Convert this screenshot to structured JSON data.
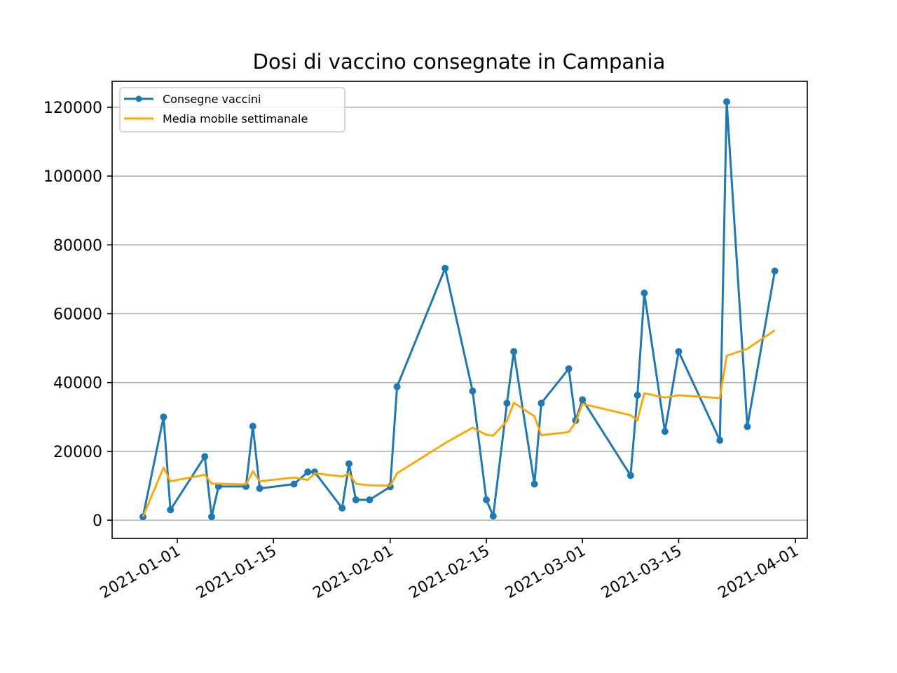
{
  "chart_data": {
    "type": "line",
    "title": "Dosi di vaccino consegnate in Campania",
    "xlabel": "",
    "ylabel": "",
    "x_ticks": [
      "2021-01-01",
      "2021-01-15",
      "2021-02-01",
      "2021-02-15",
      "2021-03-01",
      "2021-03-15",
      "2021-04-01"
    ],
    "y_ticks": [
      "0",
      "20000",
      "40000",
      "60000",
      "80000",
      "100000",
      "120000"
    ],
    "x_range": [
      "2021-12-18",
      "2021-04-02"
    ],
    "ylim": [
      -5500,
      127500
    ],
    "grid": "horizontal",
    "legend_position": "top-left",
    "series": [
      {
        "name": "Consegne vaccini",
        "color": "#1f77b4",
        "marker": "circle",
        "x": [
          "2020-12-27",
          "2020-12-30",
          "2020-12-31",
          "2021-01-05",
          "2021-01-06",
          "2021-01-07",
          "2021-01-11",
          "2021-01-12",
          "2021-01-13",
          "2021-01-18",
          "2021-01-20",
          "2021-01-21",
          "2021-01-25",
          "2021-01-26",
          "2021-01-27",
          "2021-01-29",
          "2021-02-01",
          "2021-02-02",
          "2021-02-09",
          "2021-02-13",
          "2021-02-15",
          "2021-02-16",
          "2021-02-18",
          "2021-02-19",
          "2021-02-22",
          "2021-02-23",
          "2021-02-27",
          "2021-02-28",
          "2021-03-01",
          "2021-03-08",
          "2021-03-09",
          "2021-03-10",
          "2021-03-13",
          "2021-03-15",
          "2021-03-21",
          "2021-03-22",
          "2021-03-25",
          "2021-03-29"
        ],
        "values": [
          1000,
          30000,
          3000,
          18500,
          1000,
          9800,
          9800,
          27300,
          9200,
          10500,
          14000,
          14000,
          3500,
          16400,
          5900,
          5900,
          9700,
          38800,
          73200,
          37500,
          5900,
          1200,
          34000,
          49000,
          10500,
          34000,
          44000,
          29000,
          35000,
          13000,
          36300,
          66000,
          25800,
          49000,
          23200,
          121600,
          27200,
          72400
        ]
      },
      {
        "name": "Media mobile settimanale",
        "color": "#ffa500",
        "marker": "none",
        "x": [
          "2020-12-27",
          "2020-12-30",
          "2020-12-31",
          "2021-01-05",
          "2021-01-06",
          "2021-01-07",
          "2021-01-11",
          "2021-01-12",
          "2021-01-13",
          "2021-01-18",
          "2021-01-20",
          "2021-01-21",
          "2021-01-25",
          "2021-01-26",
          "2021-01-27",
          "2021-01-29",
          "2021-02-01",
          "2021-02-02",
          "2021-02-09",
          "2021-02-13",
          "2021-02-15",
          "2021-02-16",
          "2021-02-18",
          "2021-02-19",
          "2021-02-22",
          "2021-02-23",
          "2021-02-27",
          "2021-02-28",
          "2021-03-01",
          "2021-03-08",
          "2021-03-09",
          "2021-03-10",
          "2021-03-13",
          "2021-03-15",
          "2021-03-21",
          "2021-03-22",
          "2021-03-25",
          "2021-03-29"
        ],
        "values": [
          1000,
          15300,
          11300,
          13200,
          10600,
          10600,
          10400,
          14200,
          11300,
          12400,
          11700,
          13600,
          12700,
          13500,
          10600,
          10100,
          10000,
          13600,
          22400,
          26900,
          24800,
          24600,
          28800,
          34100,
          30200,
          24700,
          25600,
          28500,
          33800,
          30500,
          29000,
          36900,
          35600,
          36300,
          35500,
          47800,
          49800,
          55200
        ]
      }
    ]
  }
}
